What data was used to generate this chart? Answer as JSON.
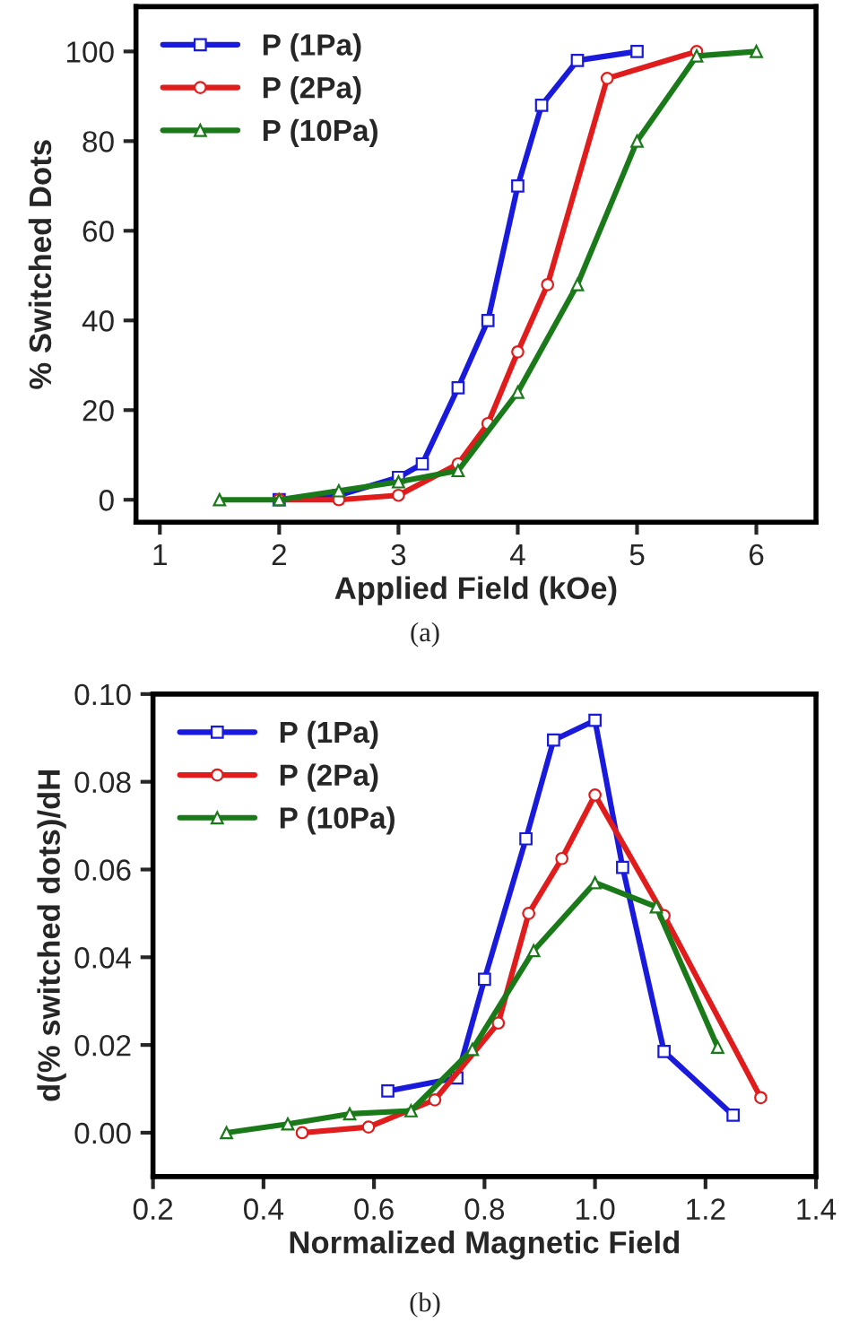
{
  "chart_data": [
    {
      "type": "line",
      "xlabel": "Applied Field (kOe)",
      "ylabel": "% Switched Dots",
      "annotations": [
        "(a)"
      ],
      "xlim": [
        0.8,
        6.5
      ],
      "ylim": [
        -5,
        110
      ],
      "xticks": [
        1,
        2,
        3,
        4,
        5,
        6
      ],
      "yticks": [
        0,
        20,
        40,
        60,
        80,
        100
      ],
      "grid": false,
      "legend": "top left",
      "line_style": "solid",
      "series": [
        {
          "name": "P (1Pa)",
          "color": "#1a1adc",
          "marker": "square",
          "x": [
            2,
            2.5,
            3,
            3.2,
            3.5,
            3.75,
            4,
            4.2,
            4.5,
            5
          ],
          "values": [
            0,
            1,
            5,
            8,
            25,
            40,
            70,
            88,
            98,
            100
          ]
        },
        {
          "name": "P (2Pa)",
          "color": "#e01c1c",
          "marker": "circle",
          "x": [
            2,
            2.5,
            3,
            3.5,
            3.75,
            4,
            4.25,
            4.75,
            5.5
          ],
          "values": [
            0,
            0,
            1,
            8,
            17,
            33,
            48,
            94,
            100
          ]
        },
        {
          "name": "P (10Pa)",
          "color": "#1a7a1a",
          "marker": "triangle",
          "x": [
            1.5,
            2,
            2.5,
            3,
            3.5,
            4,
            4.5,
            5,
            5.5,
            6
          ],
          "values": [
            0,
            0,
            2,
            4,
            6.5,
            24,
            48,
            80,
            99,
            100
          ]
        }
      ]
    },
    {
      "type": "line",
      "xlabel": "Normalized Magnetic Field",
      "ylabel": "d(% switched dots)/dH",
      "annotations": [
        "(b)"
      ],
      "xlim": [
        0.2,
        1.4
      ],
      "ylim": [
        -0.01,
        0.1
      ],
      "xticks": [
        {
          "value": 0.2,
          "label": "0.2"
        },
        {
          "value": 0.4,
          "label": "0.4"
        },
        {
          "value": 0.6,
          "label": "0.6"
        },
        {
          "value": 0.8,
          "label": "0.8"
        },
        {
          "value": 1.0,
          "label": "1.0"
        },
        {
          "value": 1.2,
          "label": "1.2"
        },
        {
          "value": 1.4,
          "label": "1.4"
        }
      ],
      "yticks": [
        {
          "value": 0,
          "label": "0.00"
        },
        {
          "value": 0.02,
          "label": "0.02"
        },
        {
          "value": 0.04,
          "label": "0.04"
        },
        {
          "value": 0.06,
          "label": "0.06"
        },
        {
          "value": 0.08,
          "label": "0.08"
        },
        {
          "value": 0.1,
          "label": "0.10"
        }
      ],
      "grid": false,
      "legend": "top left",
      "line_style": "solid",
      "series": [
        {
          "name": "P (1Pa)",
          "color": "#1a1adc",
          "marker": "square",
          "x": [
            0.625,
            0.75,
            0.8,
            0.875,
            0.925,
            1.0,
            1.05,
            1.125,
            1.25
          ],
          "values": [
            0.0095,
            0.0125,
            0.035,
            0.067,
            0.0895,
            0.094,
            0.0605,
            0.0185,
            0.004
          ]
        },
        {
          "name": "P (2Pa)",
          "color": "#e01c1c",
          "marker": "circle",
          "x": [
            0.47,
            0.59,
            0.71,
            0.825,
            0.88,
            0.94,
            1.0,
            1.125,
            1.3
          ],
          "values": [
            0,
            0.0013,
            0.0075,
            0.025,
            0.05,
            0.0625,
            0.077,
            0.0495,
            0.008
          ]
        },
        {
          "name": "P (10Pa)",
          "color": "#1a7a1a",
          "marker": "triangle",
          "x": [
            0.333,
            0.444,
            0.556,
            0.667,
            0.778,
            0.889,
            1.0,
            1.111,
            1.222
          ],
          "values": [
            0,
            0.002,
            0.0043,
            0.005,
            0.019,
            0.0415,
            0.057,
            0.0515,
            0.0195
          ]
        }
      ]
    }
  ]
}
